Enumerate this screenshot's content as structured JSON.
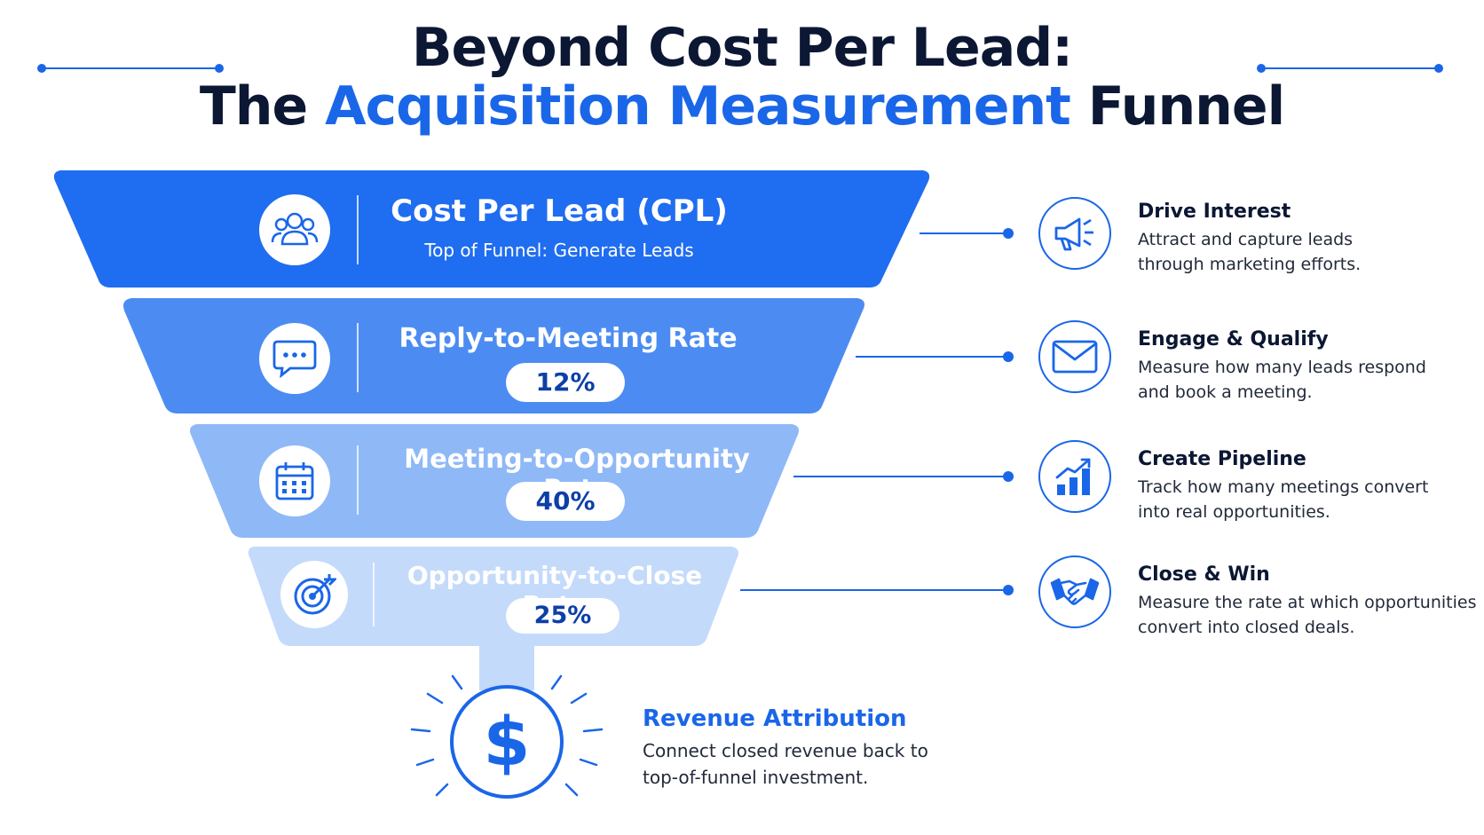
{
  "title": {
    "line1": "Beyond Cost Per Lead:",
    "line2_prefix": "The ",
    "line2_highlight": "Acquisition Measurement",
    "line2_suffix": " Funnel"
  },
  "colors": {
    "accent": "#1a66e8",
    "stage1": "#1f6df0",
    "stage2": "#4c8cf2",
    "stage3": "#8fb8f7",
    "stage4": "#c4dafb",
    "dark_text": "#0b1733"
  },
  "stages": [
    {
      "icon": "users-icon",
      "title": "Cost Per Lead (CPL)",
      "subtitle": "Top of Funnel: Generate Leads"
    },
    {
      "icon": "chat-bubble-icon",
      "title": "Reply-to-Meeting Rate",
      "value": "12%"
    },
    {
      "icon": "calendar-icon",
      "title": "Meeting-to-Opportunity Rate",
      "value": "40%"
    },
    {
      "icon": "target-icon",
      "title": "Opportunity-to-Close Rate",
      "value": "25%"
    }
  ],
  "side_steps": [
    {
      "icon": "megaphone-icon",
      "heading": "Drive Interest",
      "line1": "Attract and capture leads",
      "line2": "through marketing efforts."
    },
    {
      "icon": "envelope-icon",
      "heading": "Engage & Qualify",
      "line1": "Measure how many leads respond",
      "line2": "and book a meeting."
    },
    {
      "icon": "growth-chart-icon",
      "heading": "Create Pipeline",
      "line1": "Track how many meetings convert",
      "line2": "into real opportunities."
    },
    {
      "icon": "handshake-icon",
      "heading": "Close & Win",
      "line1": "Measure the rate at which opportunities",
      "line2": "convert into closed deals."
    }
  ],
  "revenue": {
    "icon": "dollar-icon",
    "heading": "Revenue Attribution",
    "line1": "Connect closed revenue back to",
    "line2": "top-of-funnel investment."
  }
}
